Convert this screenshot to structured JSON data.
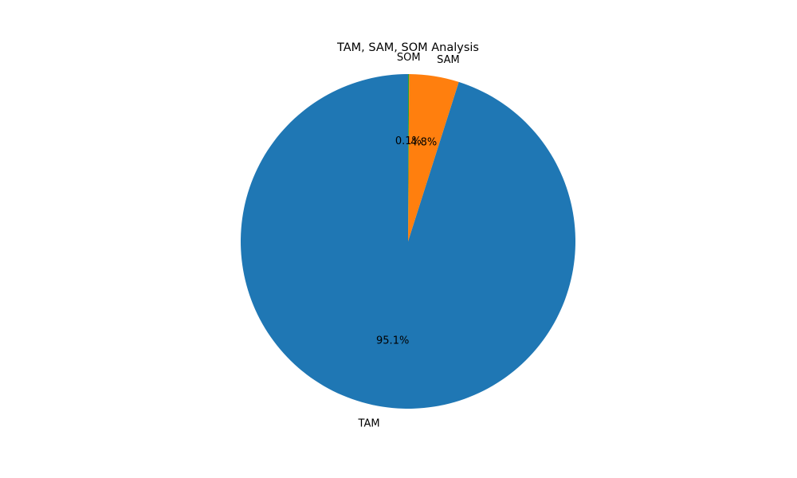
{
  "chart_data": {
    "type": "pie",
    "title": "TAM, SAM, SOM Analysis",
    "categories": [
      "TAM",
      "SAM",
      "SOM"
    ],
    "values": [
      95.1,
      4.8,
      0.1
    ],
    "percent_labels": [
      "95.1%",
      "4.8%",
      "0.1%"
    ],
    "colors": [
      "#1f77b4",
      "#ff7f0e",
      "#2ca02c"
    ],
    "start_angle": 90,
    "direction": "counterclockwise_from_top"
  }
}
